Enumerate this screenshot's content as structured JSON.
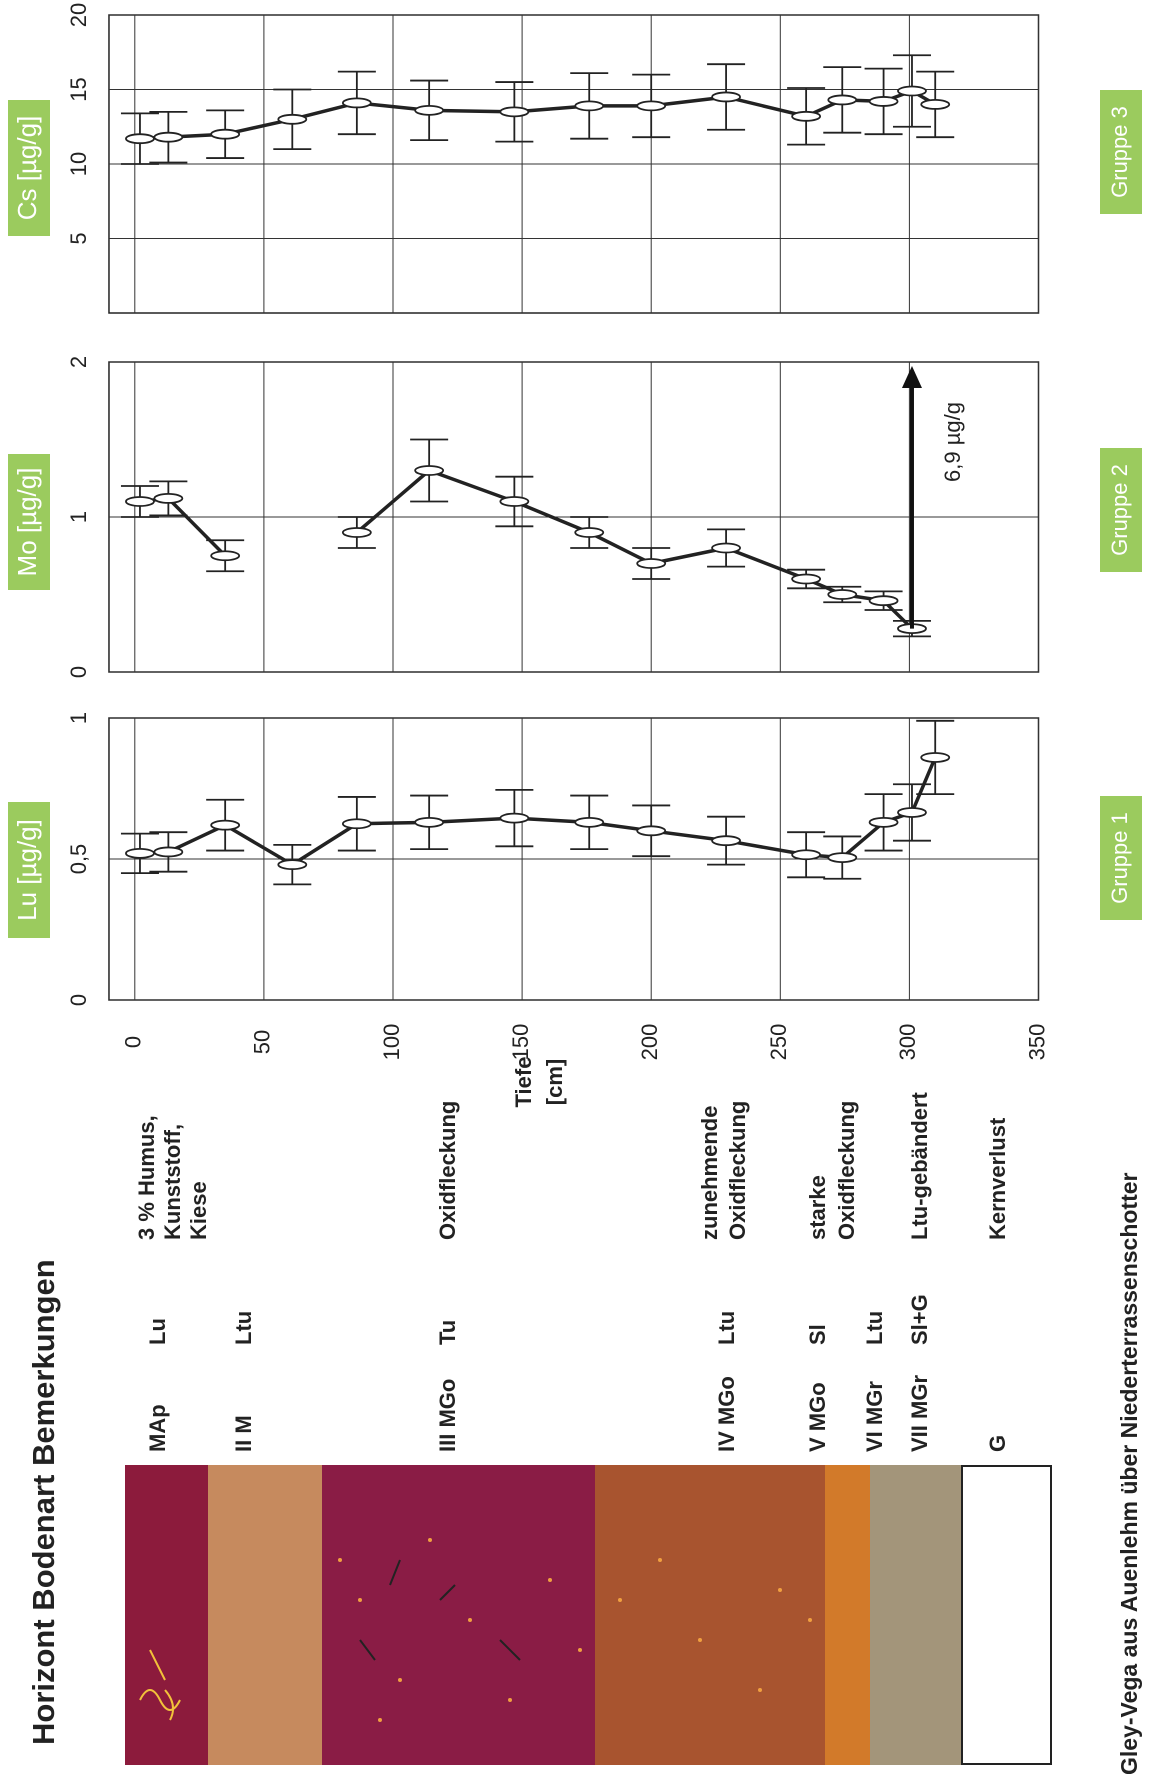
{
  "chart_data": [
    {
      "type": "line",
      "title": "Lu [µg/g]",
      "group": "Gruppe 1",
      "x": [
        2,
        13,
        35,
        61,
        86,
        114,
        147,
        176,
        200,
        229,
        260,
        274,
        290,
        301,
        310
      ],
      "xlim": [
        -10,
        350
      ],
      "xticks": [
        0,
        50,
        100,
        150,
        200,
        250,
        300,
        350
      ],
      "xlabel": [
        "Tiefe",
        "[cm]"
      ],
      "ylim": [
        0,
        1
      ],
      "yticks": [
        0,
        {
          "value": 0.5,
          "label": "0,5"
        },
        1
      ],
      "grid": true,
      "series": [
        {
          "color": "#222222",
          "values": [
            0.52,
            0.525,
            0.62,
            0.48,
            0.625,
            0.63,
            0.645,
            0.63,
            0.6,
            0.565,
            0.515,
            0.505,
            0.63,
            0.665,
            0.86
          ],
          "errors": [
            0.07,
            0.07,
            0.09,
            0.07,
            0.095,
            0.095,
            0.1,
            0.095,
            0.09,
            0.085,
            0.08,
            0.075,
            0.1,
            0.1,
            0.13
          ]
        }
      ]
    },
    {
      "type": "line",
      "title": "Mo [µg/g]",
      "group": "Gruppe 2",
      "annotation": "6,9 µg/g",
      "x": [
        2,
        13,
        35,
        61,
        86,
        114,
        147,
        176,
        200,
        229,
        260,
        274,
        290,
        301,
        310
      ],
      "xlim": [
        -10,
        350
      ],
      "ylim": [
        0,
        2
      ],
      "yticks": [
        0,
        1,
        2
      ],
      "grid": true,
      "series": [
        {
          "color": "#222222",
          "values": [
            1.1,
            1.12,
            0.75,
            null,
            0.9,
            1.3,
            1.1,
            0.9,
            0.7,
            0.8,
            0.6,
            0.5,
            0.46,
            0.28,
            null
          ],
          "errors": [
            0.1,
            0.11,
            0.1,
            null,
            0.1,
            0.2,
            0.16,
            0.1,
            0.1,
            0.12,
            0.06,
            0.05,
            0.06,
            0.05,
            null
          ]
        }
      ]
    },
    {
      "type": "line",
      "title": "Cs [µg/g]",
      "group": "Gruppe 3",
      "x": [
        2,
        13,
        35,
        61,
        86,
        114,
        147,
        176,
        200,
        229,
        260,
        274,
        290,
        301,
        310
      ],
      "xlim": [
        -10,
        350
      ],
      "ylim": [
        0,
        20
      ],
      "yticks": [
        5,
        10,
        15,
        20
      ],
      "grid": true,
      "series": [
        {
          "color": "#222222",
          "values": [
            11.7,
            11.8,
            12.0,
            13.0,
            14.1,
            13.6,
            13.5,
            13.9,
            13.9,
            14.5,
            13.2,
            14.3,
            14.2,
            14.9,
            14.0
          ],
          "errors": [
            1.7,
            1.7,
            1.6,
            2.0,
            2.1,
            2.0,
            2.0,
            2.2,
            2.1,
            2.2,
            1.9,
            2.2,
            2.2,
            2.4,
            2.2
          ]
        }
      ]
    }
  ],
  "header": "Horizont  Bodenart  Bemerkungen",
  "caption": "Gley-Vega aus Auenlehm über Niederterrassenschotter",
  "profile": {
    "rows": [
      {
        "horizon": "MAp",
        "soil": "Lu",
        "notes": [
          "3 % Humus,",
          "Kunststoff,",
          "Kiese"
        ]
      },
      {
        "horizon": "II M",
        "soil": "Ltu",
        "notes": []
      },
      {
        "horizon": "III MGo",
        "soil": "Tu",
        "notes": [
          "Oxidfleckung"
        ]
      },
      {
        "horizon": "IV MGo",
        "soil": "Ltu",
        "notes": [
          "zunehmende",
          "Oxidfleckung"
        ]
      },
      {
        "horizon": "V MGo",
        "soil": "Sl",
        "notes": [
          "starke",
          "Oxidfleckung"
        ]
      },
      {
        "horizon": "VI MGr",
        "soil": "Ltu",
        "notes": []
      },
      {
        "horizon": "VII MGr",
        "soil": "Sl+G",
        "notes": [
          "Ltu-gebändert"
        ]
      },
      {
        "horizon": "G",
        "soil": "",
        "notes": [
          "Kernverlust"
        ]
      }
    ]
  }
}
